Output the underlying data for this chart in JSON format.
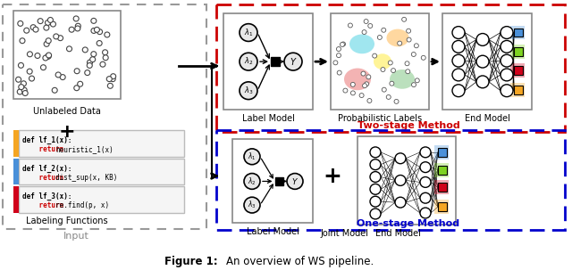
{
  "title_bold": "Figure 1:",
  "title_normal": " An overview of WS pipeline.",
  "bg_color": "#ffffff",
  "two_stage_color": "#cc0000",
  "one_stage_color": "#0000cc",
  "input_box_color": "#888888",
  "lf1_color": "#f5a623",
  "lf2_color": "#4a90d9",
  "lf3_color": "#d0021b",
  "node_facecolor": "white",
  "node_edgecolor": "black",
  "arrow_color": "black",
  "label_model_box": "#ffffff",
  "prob_label_colors": [
    "#4fc3f7",
    "#ef9a9a",
    "#a5d6a7",
    "#fff176",
    "#ce93d8"
  ],
  "end_model_output_colors": [
    "#4a90d9",
    "#7ed321",
    "#d0021b",
    "#f5a623"
  ],
  "lf_texts": [
    "def lf_1(x):\n    return heuristic_1(x)",
    "def lf_2(x):\n    return dist_sup(x, KB)",
    "def lf_3(x):\n    return re.find(p, x)"
  ],
  "lf_labels": [
    "lf_1_label",
    "lf_2_label",
    "lf_3_label"
  ]
}
